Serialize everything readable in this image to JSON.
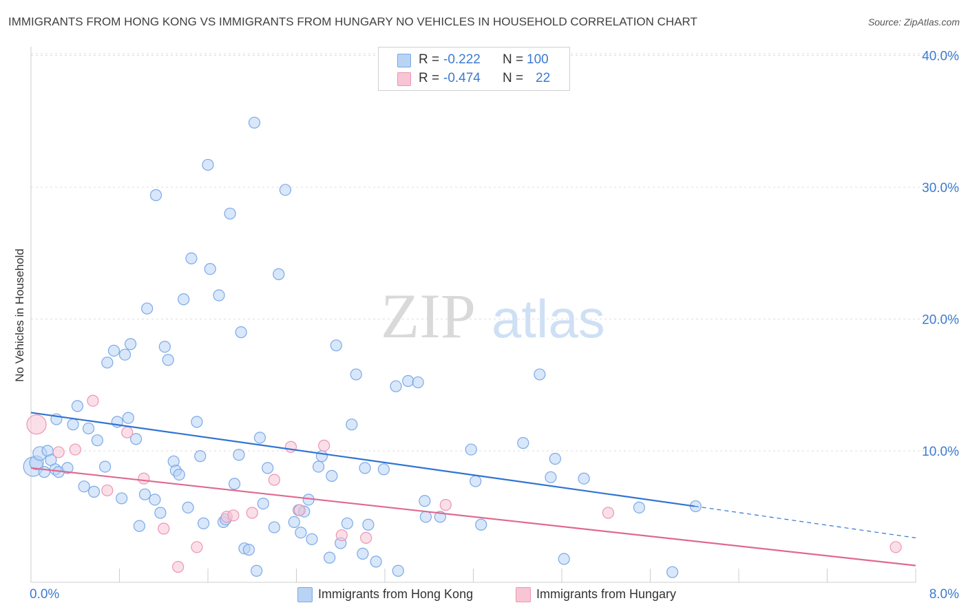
{
  "title": "IMMIGRANTS FROM HONG KONG VS IMMIGRANTS FROM HUNGARY NO VEHICLES IN HOUSEHOLD CORRELATION CHART",
  "source": "Source: ZipAtlas.com",
  "watermark": {
    "zip": "ZIP",
    "atlas": "atlas"
  },
  "legend": {
    "rows": [
      {
        "r_label": "R =",
        "r_value": "-0.222",
        "n_label": "N =",
        "n_value": "100"
      },
      {
        "r_label": "R =",
        "r_value": "-0.474",
        "n_label": "N =",
        "n_value": "22"
      }
    ]
  },
  "colors": {
    "hongkong_fill": "#b9d3f5",
    "hongkong_stroke": "#7aa9e6",
    "hongkong_line": "#2f73d3",
    "hungary_fill": "#f8c5d5",
    "hungary_stroke": "#ec94b2",
    "hungary_line": "#e0688f",
    "axis_label": "#3b7ad1",
    "grid": "#dddddd"
  },
  "chart_data": {
    "type": "scatter",
    "ylabel": "No Vehicles in Household",
    "xlim": [
      0,
      8
    ],
    "ylim": [
      0,
      41
    ],
    "x_tick_labels": [
      {
        "value": 0,
        "label": "0.0%"
      },
      {
        "value": 8,
        "label": "8.0%"
      }
    ],
    "y_tick_labels": [
      {
        "value": 10,
        "label": "10.0%"
      },
      {
        "value": 20,
        "label": "20.0%"
      },
      {
        "value": 30,
        "label": "30.0%"
      },
      {
        "value": 40,
        "label": "40.0%"
      }
    ],
    "grid": true,
    "series": [
      {
        "name": "Immigrants from Hong Kong",
        "color": "#7aa9e6",
        "trend": {
          "x0": 0,
          "y0": 12.9,
          "x1": 6.0,
          "y1": 5.8,
          "dashed_to_x": 8.0,
          "dashed_to_y": 3.4
        },
        "points": [
          [
            0.02,
            8.8,
            14
          ],
          [
            0.05,
            9.1,
            10
          ],
          [
            0.08,
            9.8,
            10
          ],
          [
            0.12,
            8.4,
            8
          ],
          [
            0.15,
            10.0,
            8
          ],
          [
            0.18,
            9.3,
            8
          ],
          [
            0.22,
            8.6,
            8
          ],
          [
            0.23,
            12.4,
            8
          ],
          [
            0.25,
            8.4,
            8
          ],
          [
            0.33,
            8.7,
            8
          ],
          [
            0.38,
            12.0,
            8
          ],
          [
            0.42,
            13.4,
            8
          ],
          [
            0.48,
            7.3,
            8
          ],
          [
            0.52,
            11.7,
            8
          ],
          [
            0.57,
            6.9,
            8
          ],
          [
            0.6,
            10.8,
            8
          ],
          [
            0.67,
            8.8,
            8
          ],
          [
            0.69,
            16.7,
            8
          ],
          [
            0.75,
            17.6,
            8
          ],
          [
            0.78,
            12.2,
            8
          ],
          [
            0.82,
            6.4,
            8
          ],
          [
            0.85,
            17.3,
            8
          ],
          [
            0.88,
            12.5,
            8
          ],
          [
            0.9,
            18.1,
            8
          ],
          [
            0.95,
            10.9,
            8
          ],
          [
            0.98,
            4.3,
            8
          ],
          [
            1.03,
            6.7,
            8
          ],
          [
            1.05,
            20.8,
            8
          ],
          [
            1.12,
            6.3,
            8
          ],
          [
            1.13,
            29.4,
            8
          ],
          [
            1.17,
            5.3,
            8
          ],
          [
            1.21,
            17.9,
            8
          ],
          [
            1.24,
            16.9,
            8
          ],
          [
            1.29,
            9.2,
            8
          ],
          [
            1.31,
            8.5,
            8
          ],
          [
            1.34,
            8.2,
            8
          ],
          [
            1.38,
            21.5,
            8
          ],
          [
            1.42,
            5.7,
            8
          ],
          [
            1.45,
            24.6,
            8
          ],
          [
            1.5,
            12.2,
            8
          ],
          [
            1.53,
            9.6,
            8
          ],
          [
            1.56,
            4.5,
            8
          ],
          [
            1.6,
            31.7,
            8
          ],
          [
            1.62,
            23.8,
            8
          ],
          [
            1.7,
            21.8,
            8
          ],
          [
            1.74,
            4.6,
            8
          ],
          [
            1.76,
            4.8,
            8
          ],
          [
            1.8,
            28.0,
            8
          ],
          [
            1.84,
            7.5,
            8
          ],
          [
            1.88,
            9.7,
            8
          ],
          [
            1.9,
            19.0,
            8
          ],
          [
            1.93,
            2.6,
            8
          ],
          [
            1.97,
            2.5,
            8
          ],
          [
            2.02,
            34.9,
            8
          ],
          [
            2.04,
            0.9,
            8
          ],
          [
            2.07,
            11.0,
            8
          ],
          [
            2.1,
            6.0,
            8
          ],
          [
            2.14,
            8.7,
            8
          ],
          [
            2.2,
            4.2,
            8
          ],
          [
            2.24,
            23.4,
            8
          ],
          [
            2.3,
            29.8,
            8
          ],
          [
            2.38,
            4.6,
            8
          ],
          [
            2.42,
            5.5,
            8
          ],
          [
            2.44,
            3.8,
            8
          ],
          [
            2.47,
            5.4,
            8
          ],
          [
            2.51,
            6.3,
            8
          ],
          [
            2.54,
            3.3,
            8
          ],
          [
            2.6,
            8.8,
            8
          ],
          [
            2.63,
            9.6,
            8
          ],
          [
            2.7,
            1.9,
            8
          ],
          [
            2.72,
            8.1,
            8
          ],
          [
            2.76,
            18.0,
            8
          ],
          [
            2.8,
            3.0,
            8
          ],
          [
            2.86,
            4.5,
            8
          ],
          [
            2.9,
            12.0,
            8
          ],
          [
            2.94,
            15.8,
            8
          ],
          [
            3.0,
            2.2,
            8
          ],
          [
            3.02,
            8.7,
            8
          ],
          [
            3.05,
            4.4,
            8
          ],
          [
            3.12,
            1.6,
            8
          ],
          [
            3.19,
            8.6,
            8
          ],
          [
            3.3,
            14.9,
            8
          ],
          [
            3.32,
            0.9,
            8
          ],
          [
            3.41,
            15.3,
            8
          ],
          [
            3.5,
            15.2,
            8
          ],
          [
            3.56,
            6.2,
            8
          ],
          [
            3.57,
            5.0,
            8
          ],
          [
            3.7,
            5.0,
            8
          ],
          [
            3.98,
            10.1,
            8
          ],
          [
            4.02,
            7.7,
            8
          ],
          [
            4.07,
            4.4,
            8
          ],
          [
            4.45,
            10.6,
            8
          ],
          [
            4.6,
            15.8,
            8
          ],
          [
            4.7,
            8.0,
            8
          ],
          [
            4.74,
            9.4,
            8
          ],
          [
            4.82,
            1.8,
            8
          ],
          [
            5.0,
            7.9,
            8
          ],
          [
            5.5,
            5.7,
            8
          ],
          [
            5.8,
            0.8,
            8
          ],
          [
            6.01,
            5.8,
            8
          ]
        ]
      },
      {
        "name": "Immigrants from Hungary",
        "color": "#ec94b2",
        "trend": {
          "x0": 0,
          "y0": 8.7,
          "x1": 8.0,
          "y1": 1.3
        },
        "points": [
          [
            0.05,
            12.0,
            14
          ],
          [
            0.25,
            9.9,
            8
          ],
          [
            0.4,
            10.1,
            8
          ],
          [
            0.56,
            13.8,
            8
          ],
          [
            0.69,
            7.0,
            8
          ],
          [
            0.87,
            11.4,
            8
          ],
          [
            1.02,
            7.9,
            8
          ],
          [
            1.2,
            4.1,
            8
          ],
          [
            1.33,
            1.2,
            8
          ],
          [
            1.5,
            2.7,
            8
          ],
          [
            1.77,
            5.0,
            8
          ],
          [
            1.83,
            5.1,
            8
          ],
          [
            2.0,
            5.3,
            8
          ],
          [
            2.2,
            7.8,
            8
          ],
          [
            2.35,
            10.3,
            8
          ],
          [
            2.43,
            5.5,
            8
          ],
          [
            2.65,
            10.4,
            8
          ],
          [
            2.81,
            3.6,
            8
          ],
          [
            3.03,
            3.4,
            8
          ],
          [
            3.75,
            5.9,
            8
          ],
          [
            5.22,
            5.3,
            8
          ],
          [
            7.82,
            2.7,
            8
          ]
        ]
      }
    ]
  }
}
